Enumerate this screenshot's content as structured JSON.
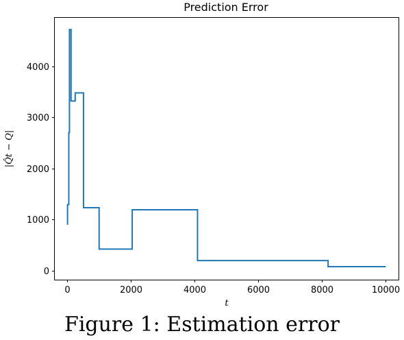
{
  "chart_data": {
    "type": "line",
    "title": "Prediction Error",
    "xlabel": "t",
    "ylabel": "|Q̂t − Q|",
    "xlim": [
      -380,
      10400
    ],
    "ylim": [
      -180,
      4950
    ],
    "xticks": [
      0,
      2000,
      4000,
      6000,
      8000,
      10000
    ],
    "yticks": [
      0,
      1000,
      2000,
      3000,
      4000
    ],
    "grid": false,
    "legend": "none",
    "step": "post",
    "series": [
      {
        "color": "#1f77b4",
        "x": [
          1,
          20,
          40,
          60,
          80,
          100,
          130,
          150,
          200,
          260,
          300,
          520,
          1000,
          1010,
          2048,
          4096,
          8192,
          10000
        ],
        "y": [
          910,
          1290,
          1290,
          2700,
          4720,
          4720,
          3320,
          3320,
          3320,
          3480,
          3480,
          1230,
          1230,
          420,
          1190,
          195,
          75,
          75
        ]
      }
    ]
  },
  "caption": "Figure 1: Estimation error"
}
